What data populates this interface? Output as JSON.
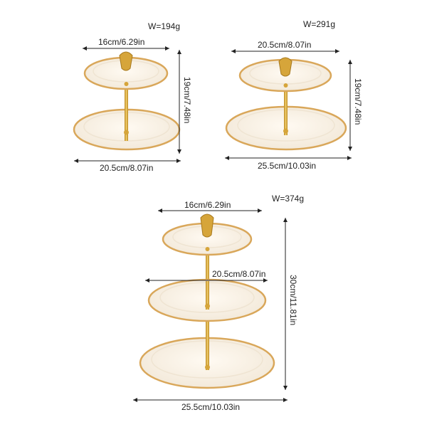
{
  "products": [
    {
      "tiers": 2,
      "weight": "W=194g",
      "top_width": "16cm/6.29in",
      "height": "19cm/7.48in",
      "bottom_width": "20.5cm/8.07in"
    },
    {
      "tiers": 2,
      "weight": "W=291g",
      "top_width": "20.5cm/8.07in",
      "height": "19cm/7.48in",
      "bottom_width": "25.5cm/10.03in"
    },
    {
      "tiers": 3,
      "weight": "W=374g",
      "top_width": "16cm/6.29in",
      "middle_width": "20.5cm/8.07in",
      "height": "30cm/11.81in",
      "bottom_width": "25.5cm/10.03in"
    }
  ],
  "colors": {
    "plate": "#fbf5ea",
    "plate_shade": "#efe4d2",
    "gold_rim": "#d9a75a",
    "gold_pole": "#d6a53a",
    "dimension_line": "#222222"
  }
}
